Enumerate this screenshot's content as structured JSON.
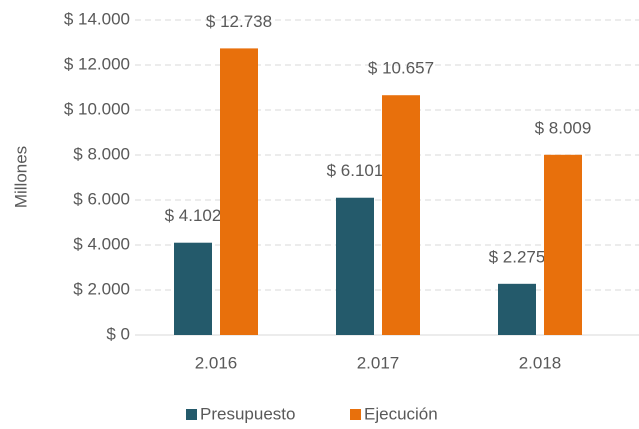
{
  "chart_data": {
    "type": "bar",
    "y_axis_label": "Millones",
    "categories": [
      "2.016",
      "2.017",
      "2.018"
    ],
    "series": [
      {
        "name": "Presupuesto",
        "color": "#245a6b",
        "values": [
          4102,
          6101,
          2275
        ],
        "value_labels": [
          "$ 4.102",
          "$ 6.101",
          "$ 2.275"
        ]
      },
      {
        "name": "Ejecución",
        "color": "#e8700c",
        "values": [
          12738,
          10657,
          8009
        ],
        "value_labels": [
          "$ 12.738",
          "$ 10.657",
          "$ 8.009"
        ]
      }
    ],
    "ylim": [
      0,
      14000
    ],
    "yticks": [
      {
        "value": 0,
        "label": "$ 0"
      },
      {
        "value": 2000,
        "label": "$ 2.000"
      },
      {
        "value": 4000,
        "label": "$ 4.000"
      },
      {
        "value": 6000,
        "label": "$ 6.000"
      },
      {
        "value": 8000,
        "label": "$ 8.000"
      },
      {
        "value": 10000,
        "label": "$ 10.000"
      },
      {
        "value": 12000,
        "label": "$ 12.000"
      },
      {
        "value": 14000,
        "label": "$ 14.000"
      }
    ],
    "grid": true,
    "legend": "bottom"
  }
}
